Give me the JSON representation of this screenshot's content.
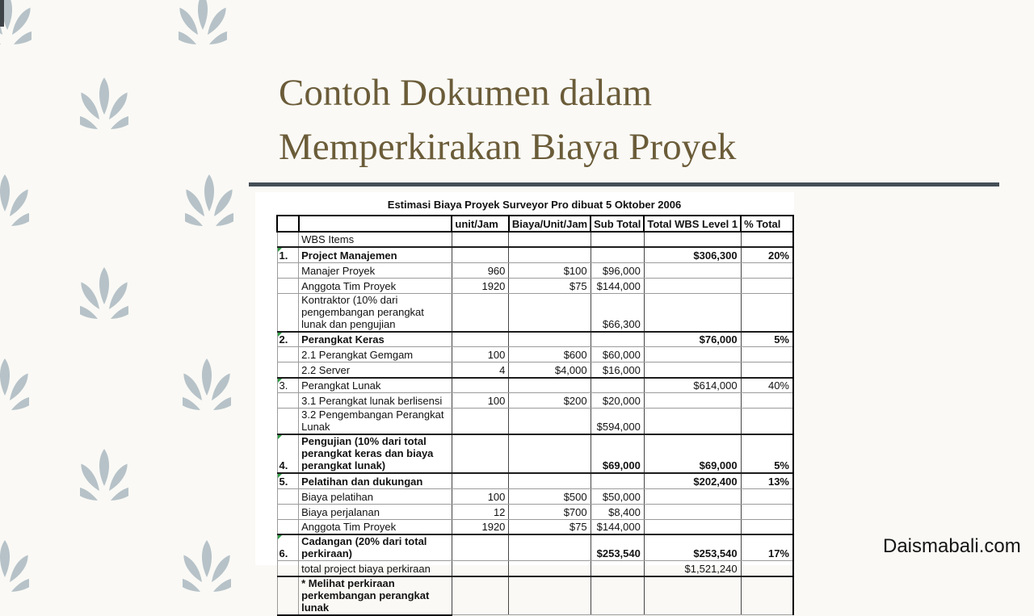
{
  "slide": {
    "title_line1": "Contoh Dokumen dalam",
    "title_line2": "Memperkirakan Biaya Proyek",
    "watermark": "Daismabali.com"
  },
  "colors": {
    "background": "#faf9f5",
    "leaf": "#b6c2c8",
    "title_text": "#6b5c39",
    "divider": "#454e57",
    "green_flag": "#2f9e44"
  },
  "table": {
    "caption": "Estimasi Biaya Proyek Surveyor Pro dibuat 5 Oktober 2006",
    "columns": [
      "",
      "",
      "unit/Jam",
      "Biaya/Unit/Jam",
      "Sub Total",
      "Total WBS Level 1",
      "% Total"
    ],
    "rows": [
      {
        "num": "",
        "item": "WBS Items",
        "unit": "",
        "rate": "",
        "sub": "",
        "total": "",
        "pct": "",
        "style": "plain",
        "flag": false
      },
      {
        "num": "1.",
        "item": "Project Manajemen",
        "unit": "",
        "rate": "",
        "sub": "",
        "total": "$306,300",
        "pct": "20%",
        "style": "section",
        "flag": true
      },
      {
        "num": "",
        "item": "Manajer Proyek",
        "unit": "960",
        "rate": "$100",
        "sub": "$96,000",
        "total": "",
        "pct": "",
        "style": "plain",
        "flag": false
      },
      {
        "num": "",
        "item": "Anggota Tim Proyek",
        "unit": "1920",
        "rate": "$75",
        "sub": "$144,000",
        "total": "",
        "pct": "",
        "style": "plain",
        "flag": false
      },
      {
        "num": "",
        "item": "Kontraktor (10% dari pengembangan perangkat lunak dan pengujian",
        "unit": "",
        "rate": "",
        "sub": "$66,300",
        "total": "",
        "pct": "",
        "style": "plain",
        "flag": false
      },
      {
        "num": "2.",
        "item": "Perangkat Keras",
        "unit": "",
        "rate": "",
        "sub": "",
        "total": "$76,000",
        "pct": "5%",
        "style": "section",
        "flag": true
      },
      {
        "num": "",
        "item": "2.1 Perangkat Gemgam",
        "unit": "100",
        "rate": "$600",
        "sub": "$60,000",
        "total": "",
        "pct": "",
        "style": "plain",
        "flag": false
      },
      {
        "num": "",
        "item": "2.2 Server",
        "unit": "4",
        "rate": "$4,000",
        "sub": "$16,000",
        "total": "",
        "pct": "",
        "style": "plain",
        "flag": false
      },
      {
        "num": "3.",
        "item": "Perangkat Lunak",
        "unit": "",
        "rate": "",
        "sub": "",
        "total": "$614,000",
        "pct": "40%",
        "style": "section-regular",
        "flag": true
      },
      {
        "num": "",
        "item": "3.1 Perangkat lunak berlisensi",
        "unit": "100",
        "rate": "$200",
        "sub": "$20,000",
        "total": "",
        "pct": "",
        "style": "plain",
        "flag": false
      },
      {
        "num": "",
        "item": "3.2 Pengembangan Perangkat Lunak",
        "unit": "",
        "rate": "",
        "sub": "$594,000",
        "total": "",
        "pct": "",
        "style": "plain",
        "flag": false
      },
      {
        "num": "4.",
        "item": "Pengujian (10% dari total perangkat keras dan biaya perangkat lunak)",
        "unit": "",
        "rate": "",
        "sub": "$69,000",
        "total": "$69,000",
        "pct": "5%",
        "style": "section",
        "flag": true
      },
      {
        "num": "5.",
        "item": "Pelatihan dan dukungan",
        "unit": "",
        "rate": "",
        "sub": "",
        "total": "$202,400",
        "pct": "13%",
        "style": "section",
        "flag": true
      },
      {
        "num": "",
        "item": "Biaya pelatihan",
        "unit": "100",
        "rate": "$500",
        "sub": "$50,000",
        "total": "",
        "pct": "",
        "style": "plain",
        "flag": false
      },
      {
        "num": "",
        "item": "Biaya perjalanan",
        "unit": "12",
        "rate": "$700",
        "sub": "$8,400",
        "total": "",
        "pct": "",
        "style": "plain",
        "flag": false
      },
      {
        "num": "",
        "item": "Anggota Tim Proyek",
        "unit": "1920",
        "rate": "$75",
        "sub": "$144,000",
        "total": "",
        "pct": "",
        "style": "plain",
        "flag": false
      },
      {
        "num": "6.",
        "item": "Cadangan (20% dari total perkiraan)",
        "unit": "",
        "rate": "",
        "sub": "$253,540",
        "total": "$253,540",
        "pct": "17%",
        "style": "section",
        "flag": true
      },
      {
        "num": "",
        "item": "total project biaya perkiraan",
        "unit": "",
        "rate": "",
        "sub": "",
        "total": "$1,521,240",
        "pct": "",
        "style": "plain",
        "flag": false
      },
      {
        "num": "",
        "item": "* Melihat perkiraan perkembangan perangkat lunak",
        "unit": "",
        "rate": "",
        "sub": "",
        "total": "",
        "pct": "",
        "style": "footnote",
        "flag": false
      }
    ]
  }
}
